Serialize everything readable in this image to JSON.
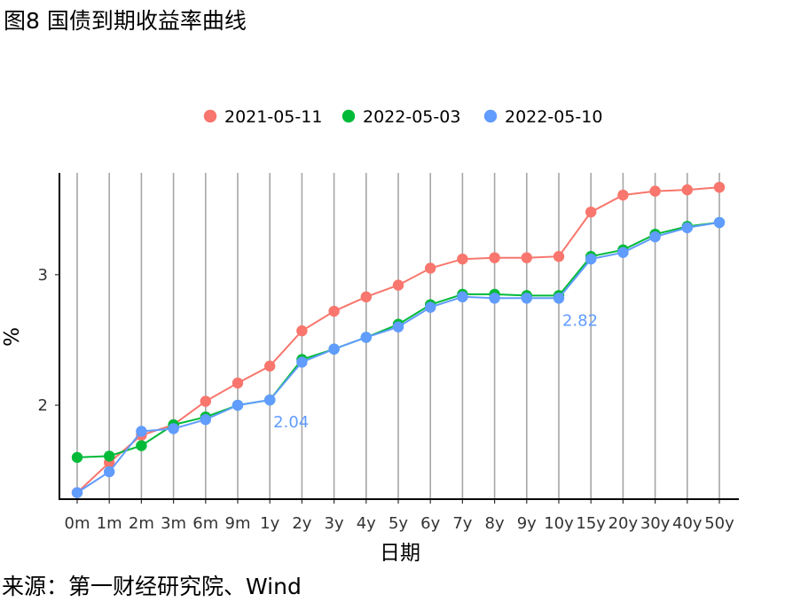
{
  "figure": {
    "title": "图8 国债到期收益率曲线",
    "source": "来源：第一财经研究院、Wind"
  },
  "chart_data": {
    "type": "line",
    "xlabel": "日期",
    "ylabel": "%",
    "categories": [
      "0m",
      "1m",
      "2m",
      "3m",
      "6m",
      "9m",
      "1y",
      "2y",
      "3y",
      "4y",
      "5y",
      "6y",
      "7y",
      "8y",
      "9y",
      "10y",
      "15y",
      "20y",
      "30y",
      "40y",
      "50y"
    ],
    "ylim": [
      1.28,
      3.78
    ],
    "yticks": [
      2,
      3
    ],
    "grid": "vertical",
    "legend_position": "top",
    "series": [
      {
        "name": "2021-05-11",
        "color": "#F8766D",
        "values": [
          1.33,
          1.56,
          1.77,
          1.85,
          2.03,
          2.17,
          2.3,
          2.57,
          2.72,
          2.83,
          2.92,
          3.05,
          3.12,
          3.13,
          3.13,
          3.14,
          3.48,
          3.61,
          3.64,
          3.65,
          3.67
        ]
      },
      {
        "name": "2022-05-03",
        "color": "#00BA38",
        "values": [
          1.6,
          1.61,
          1.69,
          1.85,
          1.91,
          2.0,
          2.04,
          2.35,
          2.43,
          2.52,
          2.62,
          2.77,
          2.85,
          2.85,
          2.84,
          2.84,
          3.14,
          3.19,
          3.31,
          3.37,
          3.4
        ]
      },
      {
        "name": "2022-05-10",
        "color": "#619CFF",
        "values": [
          1.33,
          1.49,
          1.8,
          1.82,
          1.89,
          2.0,
          2.04,
          2.33,
          2.43,
          2.52,
          2.6,
          2.75,
          2.83,
          2.82,
          2.82,
          2.82,
          3.12,
          3.17,
          3.29,
          3.36,
          3.4
        ]
      }
    ],
    "annotations": [
      {
        "category": "1y",
        "value": 2.04,
        "text": "2.04",
        "color": "#619CFF"
      },
      {
        "category": "10y",
        "value": 2.82,
        "text": "2.82",
        "color": "#619CFF"
      }
    ]
  }
}
